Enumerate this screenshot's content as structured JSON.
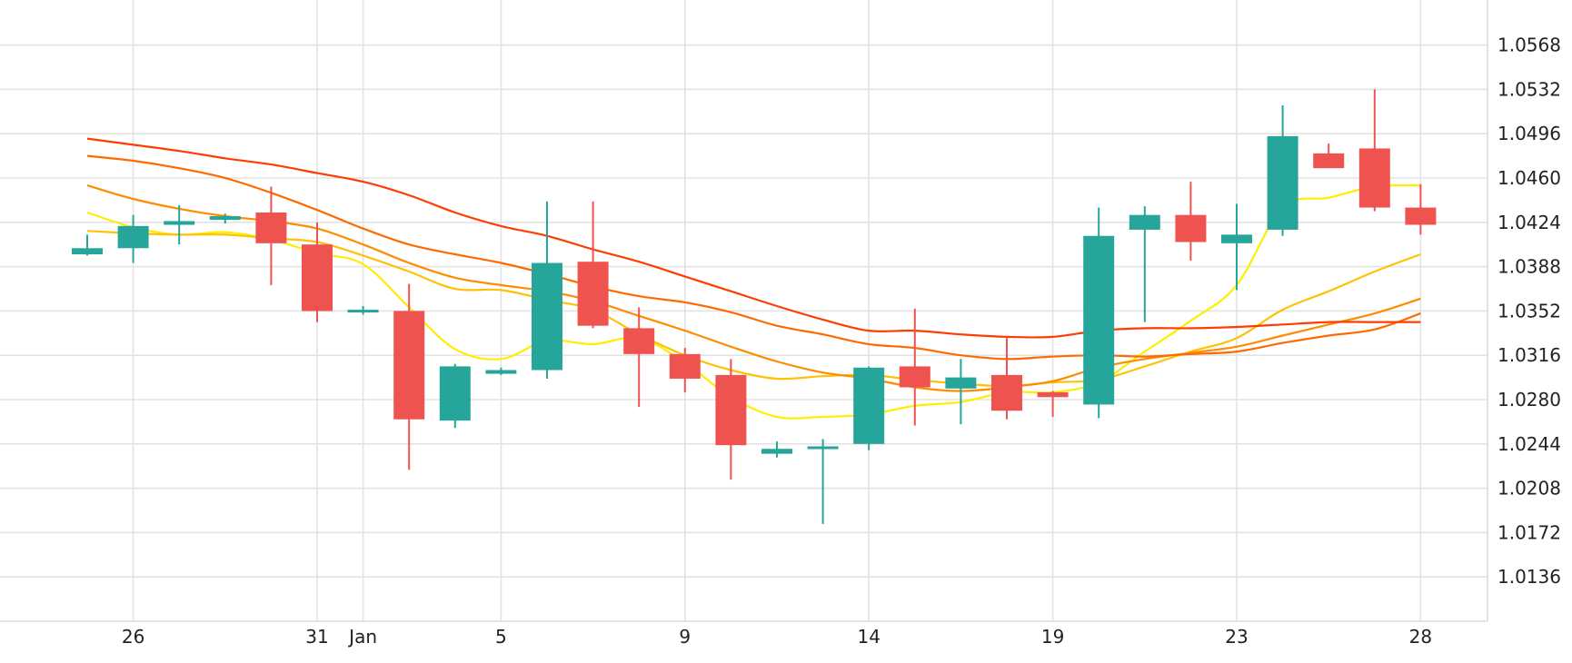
{
  "chart_data": {
    "type": "candlestick",
    "title": "",
    "xlabel": "",
    "ylabel": "",
    "ylim": [
      1.01,
      1.06
    ],
    "grid": true,
    "x_ticks": [
      {
        "label": "26",
        "index": 1
      },
      {
        "label": "31",
        "index": 5
      },
      {
        "label": "Jan",
        "index": 6
      },
      {
        "label": "5",
        "index": 9
      },
      {
        "label": "9",
        "index": 13
      },
      {
        "label": "14",
        "index": 17
      },
      {
        "label": "19",
        "index": 21
      },
      {
        "label": "23",
        "index": 25
      },
      {
        "label": "28",
        "index": 29
      }
    ],
    "y_ticks": [
      "1.0136",
      "1.0172",
      "1.0208",
      "1.0244",
      "1.0280",
      "1.0316",
      "1.0352",
      "1.0388",
      "1.0424",
      "1.0460",
      "1.0496",
      "1.0532",
      "1.0568"
    ],
    "colors": {
      "up": "#26a69a",
      "down": "#ef5350",
      "grid": "#e3e3e3"
    },
    "candles": [
      {
        "o": 1.0398,
        "h": 1.0414,
        "l": 1.0397,
        "c": 1.0403
      },
      {
        "o": 1.0403,
        "h": 1.043,
        "l": 1.0391,
        "c": 1.0421
      },
      {
        "o": 1.0422,
        "h": 1.0438,
        "l": 1.0406,
        "c": 1.0425
      },
      {
        "o": 1.0426,
        "h": 1.0431,
        "l": 1.0423,
        "c": 1.0429
      },
      {
        "o": 1.0432,
        "h": 1.0453,
        "l": 1.0373,
        "c": 1.0407
      },
      {
        "o": 1.0406,
        "h": 1.0424,
        "l": 1.0343,
        "c": 1.0352
      },
      {
        "o": 1.0352,
        "h": 1.0356,
        "l": 1.0349,
        "c": 1.0353
      },
      {
        "o": 1.0352,
        "h": 1.0374,
        "l": 1.0223,
        "c": 1.0264
      },
      {
        "o": 1.0263,
        "h": 1.0309,
        "l": 1.0257,
        "c": 1.0307
      },
      {
        "o": 1.0301,
        "h": 1.0306,
        "l": 1.03,
        "c": 1.0304
      },
      {
        "o": 1.0304,
        "h": 1.0441,
        "l": 1.0297,
        "c": 1.0391
      },
      {
        "o": 1.0392,
        "h": 1.0441,
        "l": 1.0338,
        "c": 1.034
      },
      {
        "o": 1.0338,
        "h": 1.0355,
        "l": 1.0274,
        "c": 1.0317
      },
      {
        "o": 1.0317,
        "h": 1.0322,
        "l": 1.0286,
        "c": 1.0297
      },
      {
        "o": 1.03,
        "h": 1.0313,
        "l": 1.0215,
        "c": 1.0243
      },
      {
        "o": 1.0236,
        "h": 1.0246,
        "l": 1.0233,
        "c": 1.024
      },
      {
        "o": 1.0241,
        "h": 1.0248,
        "l": 1.0179,
        "c": 1.0242
      },
      {
        "o": 1.0244,
        "h": 1.0307,
        "l": 1.0239,
        "c": 1.0306
      },
      {
        "o": 1.0307,
        "h": 1.0354,
        "l": 1.0259,
        "c": 1.029
      },
      {
        "o": 1.0289,
        "h": 1.0313,
        "l": 1.026,
        "c": 1.0298
      },
      {
        "o": 1.03,
        "h": 1.033,
        "l": 1.0264,
        "c": 1.0271
      },
      {
        "o": 1.0286,
        "h": 1.0287,
        "l": 1.0266,
        "c": 1.0282
      },
      {
        "o": 1.0276,
        "h": 1.0436,
        "l": 1.0265,
        "c": 1.0413
      },
      {
        "o": 1.0418,
        "h": 1.0437,
        "l": 1.0343,
        "c": 1.043
      },
      {
        "o": 1.043,
        "h": 1.0457,
        "l": 1.0393,
        "c": 1.0408
      },
      {
        "o": 1.0407,
        "h": 1.0439,
        "l": 1.0369,
        "c": 1.0414
      },
      {
        "o": 1.0418,
        "h": 1.0519,
        "l": 1.0413,
        "c": 1.0494
      },
      {
        "o": 1.048,
        "h": 1.0488,
        "l": 1.0471,
        "c": 1.0468
      },
      {
        "o": 1.0484,
        "h": 1.0532,
        "l": 1.0433,
        "c": 1.0436
      },
      {
        "o": 1.0436,
        "h": 1.0455,
        "l": 1.0414,
        "c": 1.0422
      }
    ],
    "moving_averages": [
      {
        "color": "#ffee00",
        "values": [
          1.0432,
          1.042,
          1.0414,
          1.0416,
          1.041,
          1.0399,
          1.039,
          1.0355,
          1.0321,
          1.0313,
          1.0328,
          1.0325,
          1.033,
          1.031,
          1.0282,
          1.0266,
          1.0266,
          1.0268,
          1.0275,
          1.0278,
          1.0286,
          1.0286,
          1.0294,
          1.0319,
          1.0344,
          1.0373,
          1.0436,
          1.0444,
          1.0453,
          1.0454
        ]
      },
      {
        "color": "#ffc107",
        "values": [
          1.0417,
          1.0415,
          1.0414,
          1.0414,
          1.0411,
          1.0408,
          1.0397,
          1.0384,
          1.037,
          1.0369,
          1.0361,
          1.0353,
          1.0333,
          1.0316,
          1.0304,
          1.0297,
          1.0299,
          1.03,
          1.0296,
          1.0293,
          1.0291,
          1.0294,
          1.0296,
          1.0307,
          1.0319,
          1.033,
          1.0353,
          1.0368,
          1.0384,
          1.0398
        ]
      },
      {
        "color": "#ff8c00",
        "values": [
          1.0454,
          1.0443,
          1.0435,
          1.0429,
          1.0425,
          1.0419,
          1.0406,
          1.0391,
          1.0379,
          1.0373,
          1.0368,
          1.036,
          1.0348,
          1.0336,
          1.0323,
          1.0311,
          1.0302,
          1.0297,
          1.029,
          1.0287,
          1.029,
          1.0295,
          1.0306,
          1.0313,
          1.0318,
          1.0323,
          1.0332,
          1.0341,
          1.035,
          1.0362
        ]
      },
      {
        "color": "#ff6a00",
        "values": [
          1.0478,
          1.0474,
          1.0468,
          1.046,
          1.0448,
          1.0434,
          1.0419,
          1.0406,
          1.0398,
          1.0391,
          1.0382,
          1.0372,
          1.0364,
          1.0359,
          1.0351,
          1.034,
          1.0333,
          1.0325,
          1.0322,
          1.0316,
          1.0313,
          1.0315,
          1.0316,
          1.0315,
          1.0317,
          1.0319,
          1.0326,
          1.0332,
          1.0337,
          1.035
        ]
      },
      {
        "color": "#ff3d00",
        "values": [
          1.0492,
          1.0487,
          1.0482,
          1.0476,
          1.0471,
          1.0464,
          1.0457,
          1.0446,
          1.0432,
          1.0421,
          1.0413,
          1.0402,
          1.0392,
          1.038,
          1.0368,
          1.0356,
          1.0345,
          1.0336,
          1.0336,
          1.0333,
          1.0331,
          1.0331,
          1.0336,
          1.0338,
          1.0338,
          1.0339,
          1.0341,
          1.0343,
          1.0343,
          1.0343
        ]
      }
    ]
  }
}
